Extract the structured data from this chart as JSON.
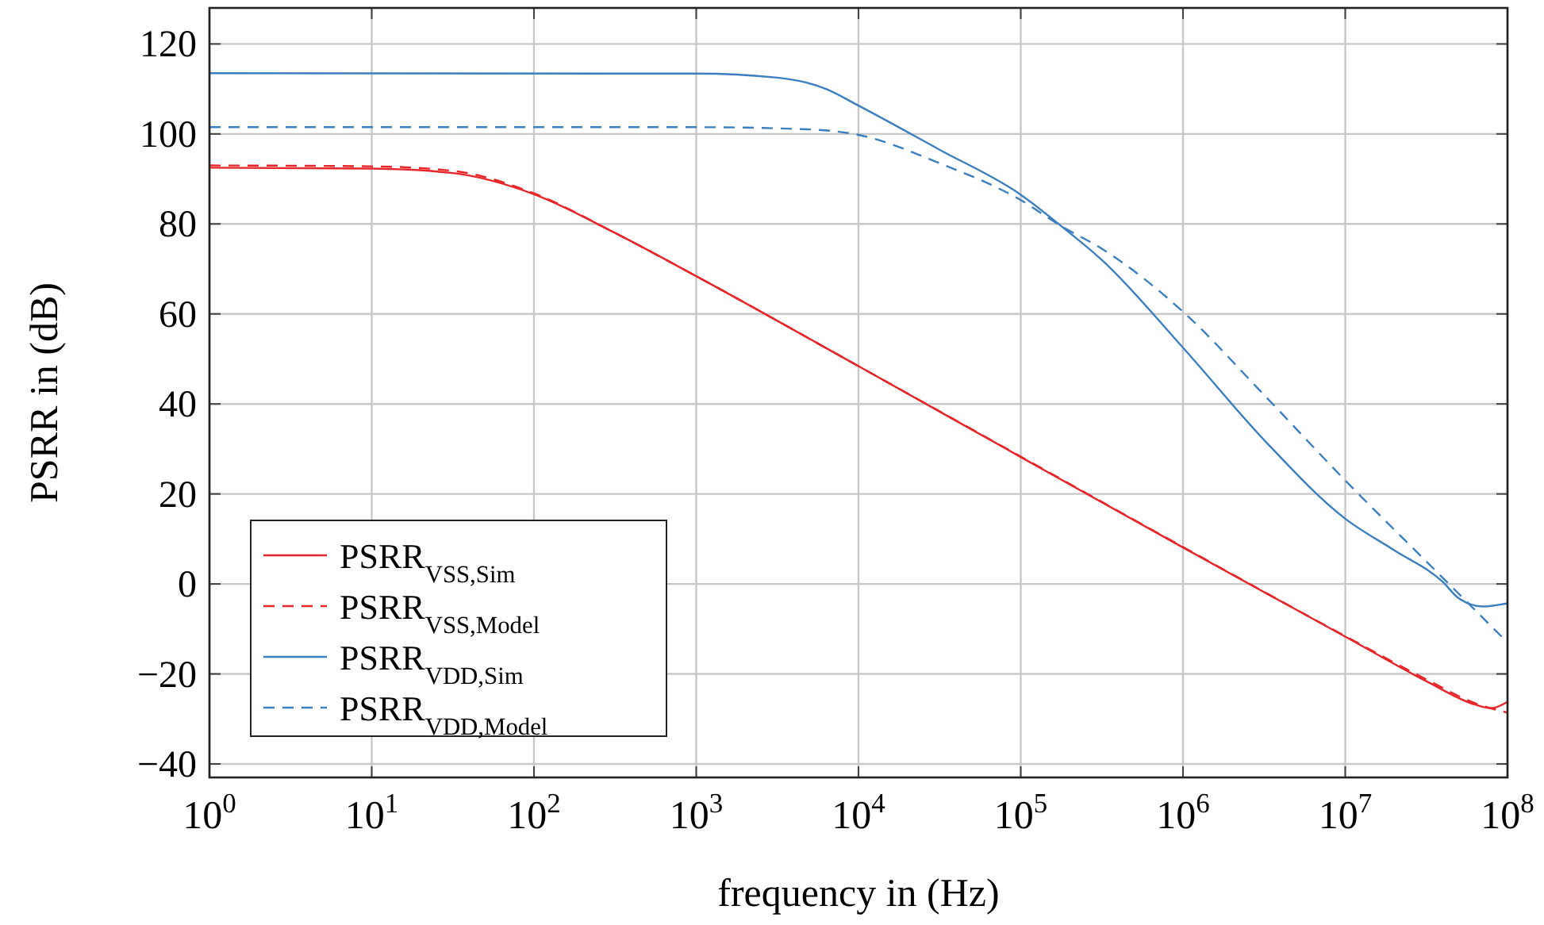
{
  "chart_data": {
    "type": "line",
    "xlabel": "frequency in (Hz)",
    "ylabel": "PSRR in (dB)",
    "log": "x",
    "grid": true,
    "legend": "bottom left",
    "xlim": [
      1,
      100000000
    ],
    "ylim": [
      -43,
      128
    ],
    "xticks": [
      {
        "value": 1,
        "label": "10$^{0}$"
      },
      {
        "value": 10,
        "label": "10$^{1}$"
      },
      {
        "value": 100,
        "label": "10$^{2}$"
      },
      {
        "value": 1000,
        "label": "10$^{3}$"
      },
      {
        "value": 10000,
        "label": "10$^{4}$"
      },
      {
        "value": 100000,
        "label": "10$^{5}$"
      },
      {
        "value": 1000000,
        "label": "10$^{6}$"
      },
      {
        "value": 10000000,
        "label": "10$^{7}$"
      },
      {
        "value": 100000000,
        "label": "10$^{8}$"
      }
    ],
    "yticks": [
      {
        "value": -40,
        "label": "−40"
      },
      {
        "value": -20,
        "label": "−20"
      },
      0,
      20,
      40,
      60,
      80,
      100,
      120
    ],
    "series": [
      {
        "name": "PSRR$_{VSS,Sim}$",
        "color": "#e8262a",
        "line_style": "solid",
        "x": [
          1,
          10,
          31.6,
          100,
          316,
          1000,
          10000,
          100000,
          1000000,
          10000000,
          31600000,
          63100000,
          79400000,
          100000000
        ],
        "values": [
          92.5,
          92.3,
          91.3,
          86.6,
          78,
          68.4,
          48.4,
          28.2,
          8.1,
          -11.7,
          -21.6,
          -26.8,
          -27.6,
          -26.2
        ]
      },
      {
        "name": "PSRR$_{VSS,Model}$",
        "color": "#e8262a",
        "line_style": "dashed",
        "x": [
          1,
          10,
          31.6,
          100,
          316,
          1000,
          10000,
          100000,
          1000000,
          10000000,
          31600000,
          63100000,
          100000000
        ],
        "values": [
          93,
          92.8,
          91.8,
          86.8,
          78,
          68.4,
          48.4,
          28.3,
          8.2,
          -11.6,
          -21.2,
          -26.5,
          -28.6
        ]
      },
      {
        "name": "PSRR$_{VDD,Sim}$",
        "color": "#3c7fc0",
        "line_style": "solid",
        "x": [
          1,
          1000,
          3160,
          6310,
          10000,
          31600,
          100000,
          178000,
          316000,
          1000000,
          3160000,
          10000000,
          20000000,
          39800000,
          50100000,
          70800000,
          100000000
        ],
        "values": [
          113.5,
          113.4,
          112.5,
          110,
          106.3,
          96.5,
          86.5,
          79.5,
          72,
          52.5,
          32,
          14.5,
          7.5,
          0.5,
          -3.2,
          -5,
          -4.3
        ]
      },
      {
        "name": "PSRR$_{VDD,Model}$",
        "color": "#3c7fc0",
        "line_style": "dashed",
        "x": [
          1,
          1000,
          5010,
          10000,
          31600,
          100000,
          178000,
          316000,
          1000000,
          3160000,
          10000000,
          31600000,
          100000000
        ],
        "values": [
          101.5,
          101.5,
          101,
          99.8,
          93.5,
          85.3,
          79.5,
          74.5,
          60.5,
          42,
          23,
          5,
          -13
        ]
      }
    ]
  }
}
